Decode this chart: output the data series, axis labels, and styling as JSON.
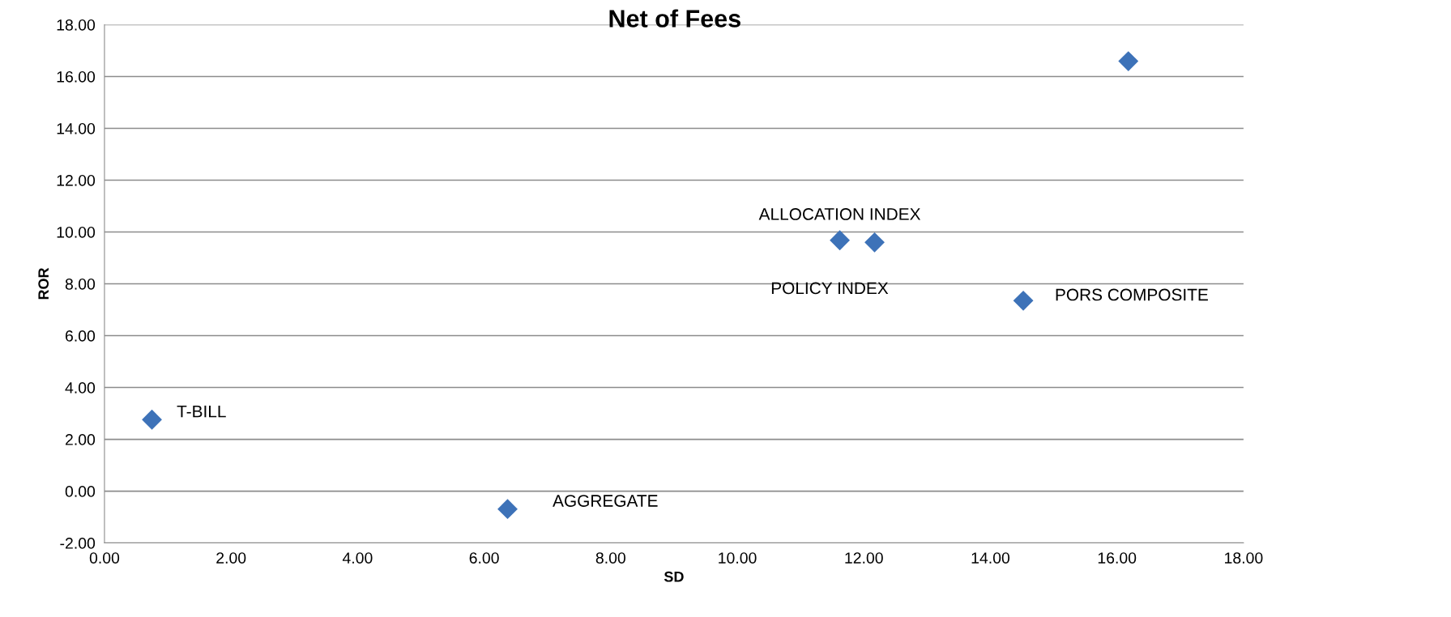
{
  "chart_data": {
    "type": "scatter",
    "title": "Net of Fees",
    "xlabel": "SD",
    "ylabel": "ROR",
    "series": [
      {
        "color": "#3d72b8",
        "x": [
          0.75,
          6.37,
          11.62,
          12.17,
          14.52,
          16.18
        ],
        "values": [
          2.76,
          -0.69,
          9.68,
          9.6,
          7.35,
          16.59
        ]
      }
    ],
    "annotations": [
      {
        "text": "T-BILL",
        "x": 0.75,
        "y": 2.76
      },
      {
        "text": "AGGREGATE",
        "x": 6.37,
        "y": -0.69
      },
      {
        "text": "ALLOCATION INDEX",
        "x": 11.62,
        "y": 9.68
      },
      {
        "text": "POLICY INDEX",
        "x": 12.17,
        "y": 9.6
      },
      {
        "text": "PORS COMPOSITE",
        "x": 14.52,
        "y": 7.35
      }
    ],
    "xlim": [
      0,
      18
    ],
    "xticks": [
      {
        "value": 0,
        "label": "0.00"
      },
      {
        "value": 2,
        "label": "2.00"
      },
      {
        "value": 4,
        "label": "4.00"
      },
      {
        "value": 6,
        "label": "6.00"
      },
      {
        "value": 8,
        "label": "8.00"
      },
      {
        "value": 10,
        "label": "10.00"
      },
      {
        "value": 12,
        "label": "12.00"
      },
      {
        "value": 14,
        "label": "14.00"
      },
      {
        "value": 16,
        "label": "16.00"
      },
      {
        "value": 18,
        "label": "18.00"
      }
    ],
    "ylim": [
      -2,
      18
    ],
    "yticks": [
      {
        "value": -2,
        "label": "-2.00"
      },
      {
        "value": 0,
        "label": "0.00"
      },
      {
        "value": 2,
        "label": "2.00"
      },
      {
        "value": 4,
        "label": "4.00"
      },
      {
        "value": 6,
        "label": "6.00"
      },
      {
        "value": 8,
        "label": "8.00"
      },
      {
        "value": 10,
        "label": "10.00"
      },
      {
        "value": 12,
        "label": "12.00"
      },
      {
        "value": 14,
        "label": "14.00"
      },
      {
        "value": 16,
        "label": "16.00"
      },
      {
        "value": 18,
        "label": "18.00"
      }
    ],
    "grid": "y",
    "marker": "diamond"
  }
}
